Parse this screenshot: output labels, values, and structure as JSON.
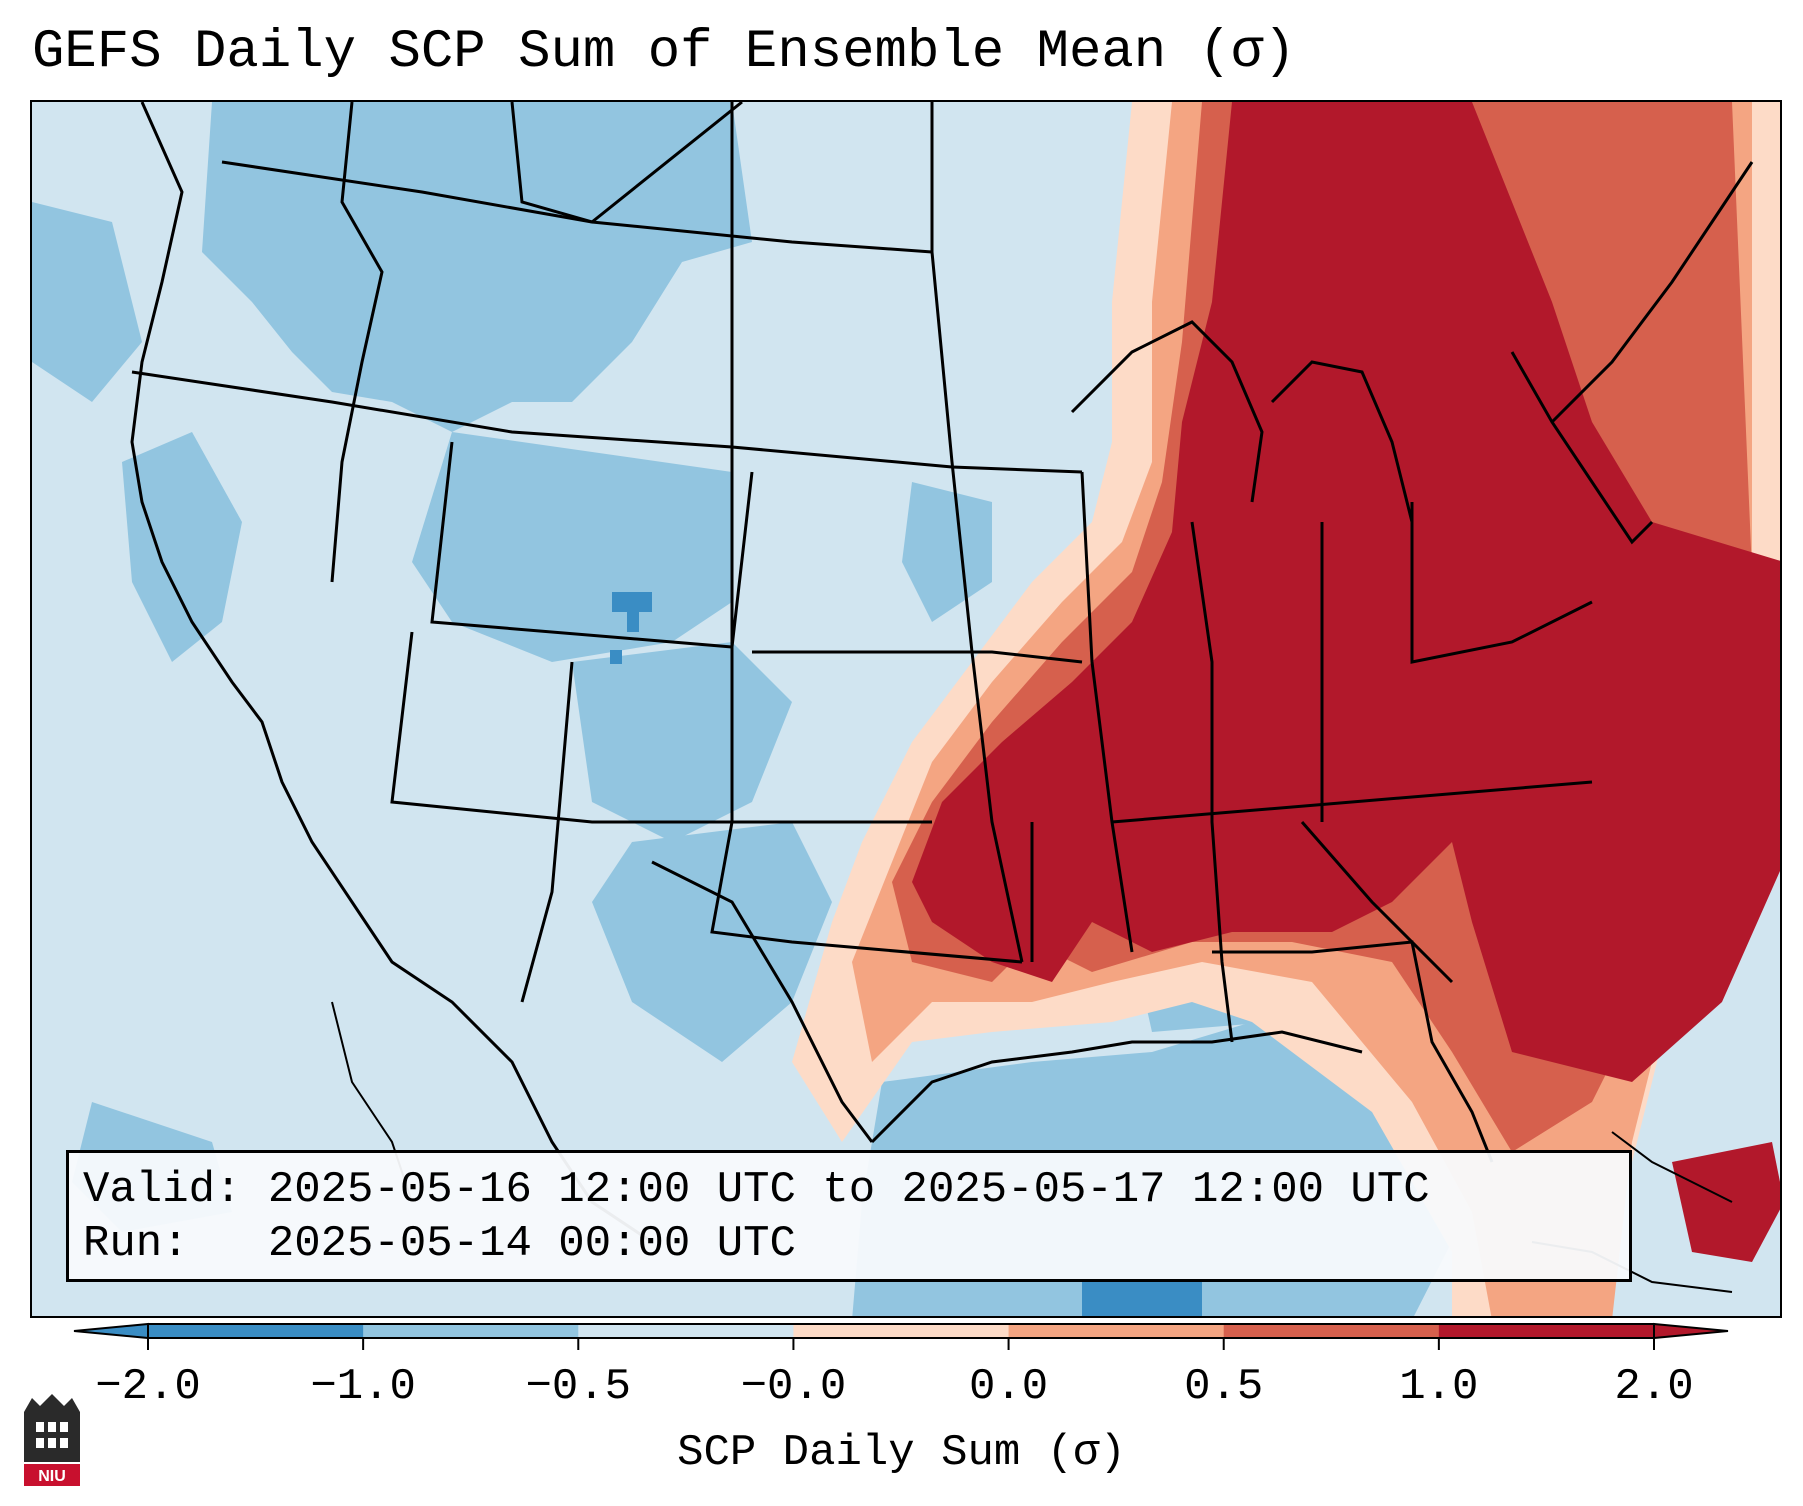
{
  "title": "GEFS Daily SCP Sum of Ensemble Mean (σ)",
  "info_box": {
    "valid_label": "Valid:",
    "valid_value": "2025-05-16 12:00 UTC to 2025-05-17 12:00 UTC",
    "run_label": "Run:",
    "run_value": "2025-05-14 00:00 UTC"
  },
  "colorbar": {
    "label": "SCP Daily Sum (σ)",
    "ticks": [
      "−2.0",
      "−1.0",
      "−0.5",
      "−0.0",
      "0.0",
      "0.5",
      "1.0",
      "2.0"
    ],
    "colors": [
      "#3a8dc4",
      "#92c5e0",
      "#d1e5f0",
      "#fddbc7",
      "#f4a582",
      "#d6604d",
      "#b2182b"
    ],
    "extend": "both"
  },
  "legend_colors": {
    "strong_negative": "#3a8dc4",
    "negative": "#92c5e0",
    "weak_negative": "#d1e5f0",
    "weak_positive": "#fddbc7",
    "positive": "#f4a582",
    "moderate_positive": "#d6604d",
    "strong_positive": "#b2182b"
  },
  "logo": {
    "text": "NIU",
    "icon": "university-logo-icon"
  },
  "region": "Contiguous United States"
}
